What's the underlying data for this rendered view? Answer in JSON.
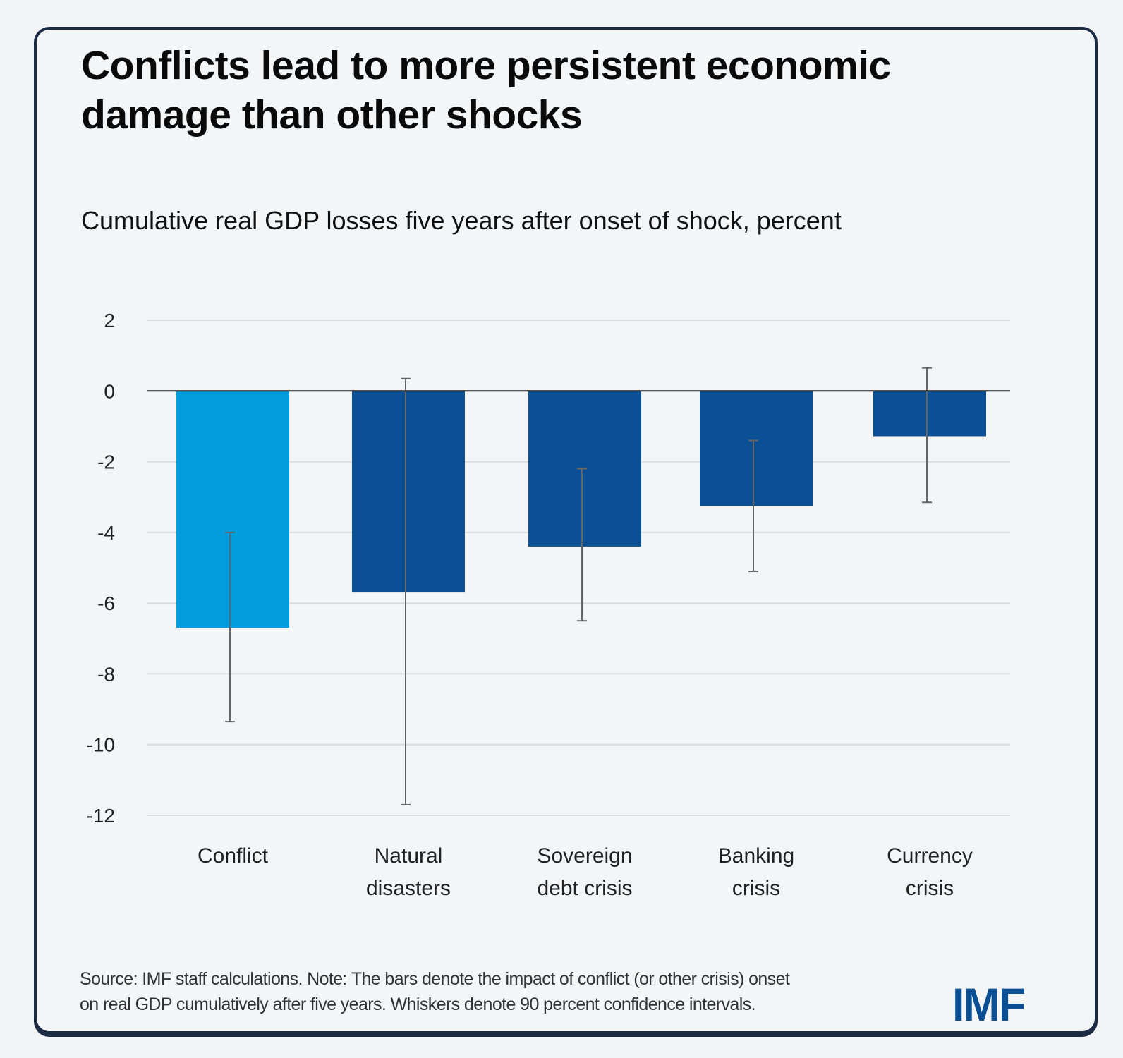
{
  "chart_data": {
    "type": "bar",
    "title": "Conflicts lead to more persistent economic damage than other shocks",
    "subtitle": "Cumulative real GDP losses five years after onset of shock, percent",
    "categories": [
      [
        "Conflict"
      ],
      [
        "Natural",
        "disasters"
      ],
      [
        "Sovereign",
        "debt crisis"
      ],
      [
        "Banking",
        "crisis"
      ],
      [
        "Currency",
        "crisis"
      ]
    ],
    "values": [
      -6.7,
      -5.7,
      -4.4,
      -3.25,
      -1.28
    ],
    "ci_upper": [
      -4.0,
      0.35,
      -2.2,
      -1.4,
      0.65
    ],
    "ci_lower": [
      -9.35,
      -11.7,
      -6.5,
      -5.1,
      -3.15
    ],
    "colors": [
      "#009cde",
      "#0b4f95",
      "#0b4f95",
      "#0b4f95",
      "#0b4f95"
    ],
    "ylim": [
      -12,
      2
    ],
    "yticks": [
      "2",
      "0",
      "-2",
      "-4",
      "-6",
      "-8",
      "-10",
      "-12"
    ],
    "grid": true,
    "legend": "none"
  },
  "footer": {
    "note_line1": "Source: IMF staff calculations. Note: The bars denote the impact of conflict (or other crisis) onset",
    "note_line2": "on real GDP cumulatively after five years. Whiskers denote 90 percent confidence intervals.",
    "logo": "IMF"
  }
}
